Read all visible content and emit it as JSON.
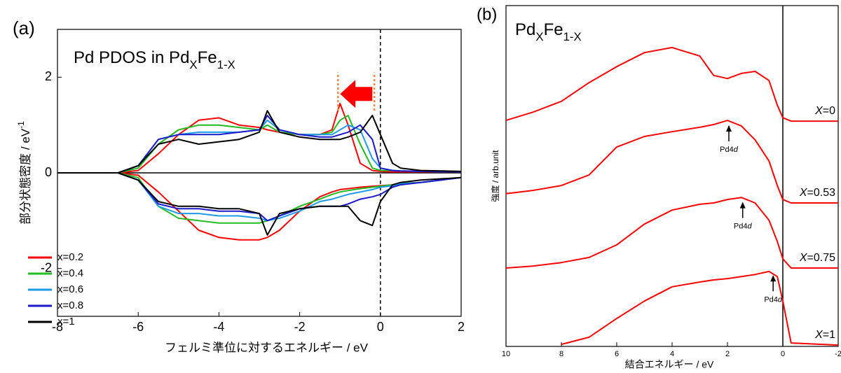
{
  "chart_data": [
    {
      "type": "line",
      "panel_label": "(a)",
      "title": [
        {
          "text": "Pd PDOS in Pd",
          "sub": false
        },
        {
          "text": "X",
          "sub": true
        },
        {
          "text": "Fe",
          "sub": false
        },
        {
          "text": "1-X",
          "sub": true
        }
      ],
      "xlabel": "フェルミ準位に対するエネルギー  / eV",
      "ylabel": [
        {
          "text": "部分状態密度  / eV",
          "sup": false
        },
        {
          "text": "-1",
          "sup": true
        }
      ],
      "xlim": [
        -8,
        2
      ],
      "ylim": [
        -3,
        3
      ],
      "xticks": [
        -8,
        -6,
        -4,
        -2,
        0,
        2
      ],
      "yticks": [
        -2,
        0,
        2
      ],
      "hline": 0,
      "vline": 0,
      "guides": {
        "x": [
          -1.05,
          -0.15
        ],
        "y": [
          1.3,
          2.1
        ],
        "color": "#f08a3c"
      },
      "arrow": {
        "x": [
          -0.2,
          -1.0
        ],
        "y": 1.65,
        "color": "#ff0000"
      },
      "x": [
        -8,
        -6.5,
        -6,
        -5.5,
        -5,
        -4.5,
        -4,
        -3.5,
        -3,
        -2.8,
        -2.5,
        -2,
        -1.5,
        -1.2,
        -1,
        -0.8,
        -0.5,
        -0.2,
        0,
        0.3,
        0.5,
        1,
        2
      ],
      "series": [
        {
          "name": "x=0.2",
          "color": "#ff0000",
          "values": [
            0,
            0,
            0.05,
            0.4,
            0.8,
            1.1,
            1.15,
            1.0,
            0.95,
            0.9,
            0.85,
            0.8,
            0.8,
            0.9,
            1.45,
            1.0,
            0.2,
            0.05,
            0.03,
            0.02,
            0.02,
            0.02,
            0.02
          ],
          "values_down": [
            0,
            0,
            -0.05,
            -0.4,
            -0.8,
            -1.2,
            -1.35,
            -1.4,
            -1.4,
            -1.35,
            -1.2,
            -0.8,
            -0.5,
            -0.4,
            -0.35,
            -0.33,
            -0.3,
            -0.28,
            -0.27,
            -0.25,
            -0.22,
            -0.2,
            -0.1
          ]
        },
        {
          "name": "x=0.4",
          "color": "#22bb22",
          "values": [
            0,
            0,
            0.1,
            0.6,
            0.9,
            1.0,
            1.0,
            0.95,
            0.9,
            1.0,
            0.85,
            0.8,
            0.8,
            0.85,
            1.1,
            1.2,
            0.6,
            0.1,
            0.05,
            0.05,
            0.04,
            0.03,
            0.02
          ],
          "values_down": [
            0,
            0,
            -0.1,
            -0.7,
            -0.95,
            -1.0,
            -1.05,
            -1.05,
            -1.05,
            -1.0,
            -0.9,
            -0.7,
            -0.55,
            -0.45,
            -0.4,
            -0.37,
            -0.33,
            -0.3,
            -0.28,
            -0.25,
            -0.22,
            -0.2,
            -0.1
          ]
        },
        {
          "name": "x=0.6",
          "color": "#1e9be8",
          "values": [
            0,
            0,
            0.15,
            0.7,
            0.8,
            0.85,
            0.85,
            0.85,
            0.9,
            1.1,
            0.9,
            0.8,
            0.8,
            0.8,
            0.9,
            1.0,
            0.9,
            0.3,
            0.1,
            0.05,
            0.04,
            0.03,
            0.02
          ],
          "values_down": [
            0,
            0,
            -0.15,
            -0.7,
            -0.85,
            -0.85,
            -0.9,
            -0.9,
            -0.95,
            -1.0,
            -0.95,
            -0.8,
            -0.6,
            -0.55,
            -0.5,
            -0.45,
            -0.4,
            -0.35,
            -0.3,
            -0.27,
            -0.23,
            -0.2,
            -0.1
          ]
        },
        {
          "name": "x=0.8",
          "color": "#1a1acc",
          "values": [
            0,
            0,
            0.15,
            0.7,
            0.8,
            0.8,
            0.8,
            0.85,
            0.9,
            1.2,
            0.9,
            0.8,
            0.75,
            0.75,
            0.8,
            0.85,
            1.0,
            0.7,
            0.1,
            0.05,
            0.04,
            0.03,
            0.02
          ],
          "values_down": [
            0,
            0,
            -0.15,
            -0.65,
            -0.75,
            -0.75,
            -0.8,
            -0.8,
            -0.85,
            -1.0,
            -0.9,
            -0.75,
            -0.7,
            -0.7,
            -0.7,
            -0.65,
            -0.55,
            -0.5,
            -0.45,
            -0.3,
            -0.25,
            -0.2,
            -0.1
          ]
        },
        {
          "name": "x=1",
          "color": "#000000",
          "values": [
            0,
            0,
            0.15,
            0.6,
            0.7,
            0.6,
            0.65,
            0.7,
            0.85,
            1.3,
            0.85,
            0.75,
            0.7,
            0.7,
            0.7,
            0.75,
            0.85,
            1.2,
            0.8,
            0.2,
            0.1,
            0.05,
            0.03
          ],
          "values_down": [
            0,
            0,
            -0.15,
            -0.6,
            -0.7,
            -0.7,
            -0.75,
            -0.75,
            -0.85,
            -1.3,
            -0.85,
            -0.75,
            -0.7,
            -0.7,
            -0.7,
            -0.7,
            -1.0,
            -1.1,
            -0.6,
            -0.25,
            -0.2,
            -0.15,
            -0.1
          ]
        }
      ]
    },
    {
      "type": "line",
      "panel_label": "(b)",
      "title": [
        {
          "text": "Pd",
          "sub": false
        },
        {
          "text": "X",
          "sub": true
        },
        {
          "text": "Fe",
          "sub": false
        },
        {
          "text": "1-X",
          "sub": true
        }
      ],
      "xlabel": "結合エネルギー / eV",
      "ylabel": [
        {
          "text": "強度 / arb.unit",
          "sup": false
        }
      ],
      "xlim": [
        10,
        -2
      ],
      "ylim": [
        0,
        100
      ],
      "xticks": [
        10,
        8,
        6,
        4,
        2,
        0,
        -2
      ],
      "vline": 0,
      "x": [
        10,
        9,
        8,
        7,
        6,
        5,
        4,
        3,
        2.5,
        2,
        1.5,
        1,
        0.5,
        0.2,
        0,
        -0.3,
        -2
      ],
      "series": [
        {
          "name": "X=0",
          "color": "#ff0000",
          "values": [
            66.3,
            68.8,
            71.9,
            77.4,
            82.1,
            86.2,
            87.7,
            85.2,
            79.5,
            78.6,
            80.1,
            80.7,
            78.0,
            70.8,
            67.1,
            66.1,
            66.1
          ]
        },
        {
          "name": "X=0.53",
          "color": "#ff0000",
          "values": [
            44.8,
            45.8,
            47.2,
            50.3,
            58.5,
            61.6,
            63.0,
            64.3,
            65.1,
            66.3,
            64.7,
            60.6,
            54.4,
            47.2,
            43.1,
            42.1,
            42.1
          ]
        },
        {
          "name": "X=0.75",
          "color": "#ff0000",
          "values": [
            23.0,
            23.6,
            24.6,
            26.1,
            29.8,
            35.9,
            40.0,
            41.7,
            42.1,
            43.1,
            43.7,
            42.1,
            37.0,
            30.8,
            25.7,
            23.0,
            23.0
          ]
        },
        {
          "name": "X=1",
          "color": "#ff0000",
          "values": [
            null,
            null,
            0.6,
            2.7,
            8.2,
            13.3,
            17.5,
            18.9,
            19.5,
            19.9,
            20.5,
            21.1,
            22.0,
            20.5,
            13.3,
            1.0,
            0.4
          ]
        }
      ],
      "annotations": [
        {
          "text": "Pd4d",
          "x": 1.95,
          "y": 65.5
        },
        {
          "text": "Pd4d",
          "x": 1.45,
          "y": 43.0
        },
        {
          "text": "Pd4d",
          "x": 0.35,
          "y": 21.5
        }
      ]
    }
  ]
}
